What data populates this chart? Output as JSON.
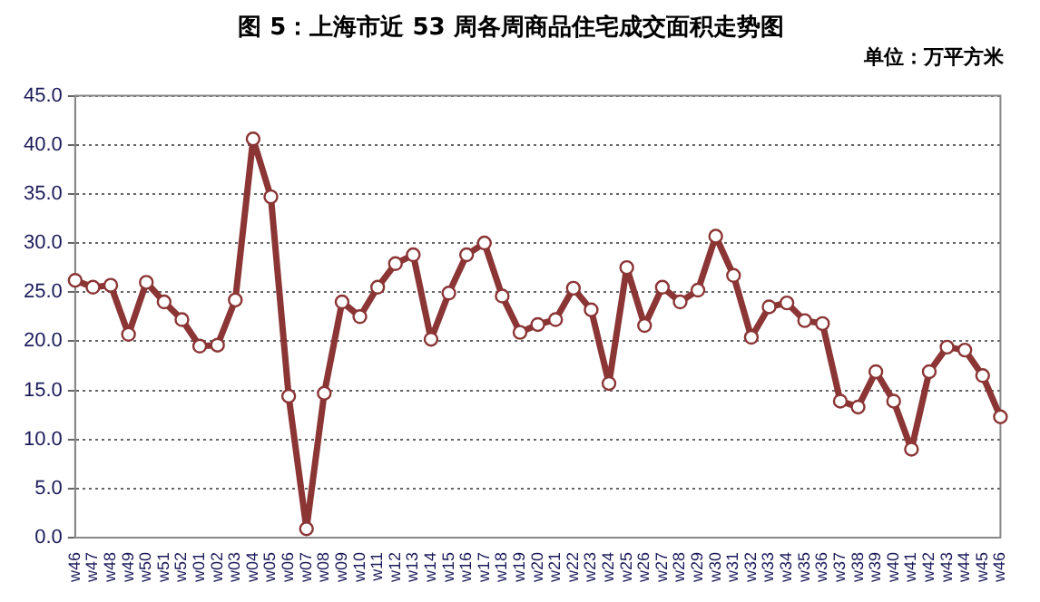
{
  "chart_data": {
    "type": "line",
    "title": "图 5：上海市近 53 周各周商品住宅成交面积走势图",
    "subtitle": "单位：万平方米",
    "categories": [
      "w46",
      "w47",
      "w48",
      "w49",
      "w50",
      "w51",
      "w52",
      "w01",
      "w02",
      "w03",
      "w04",
      "w05",
      "w06",
      "w07",
      "w08",
      "w09",
      "w10",
      "w11",
      "w12",
      "w13",
      "w14",
      "w15",
      "w16",
      "w17",
      "w18",
      "w19",
      "w20",
      "w21",
      "w22",
      "w23",
      "w24",
      "w25",
      "w26",
      "w27",
      "w28",
      "w29",
      "w30",
      "w31",
      "w32",
      "w33",
      "w34",
      "w35",
      "w36",
      "w37",
      "w38",
      "w39",
      "w40",
      "w41",
      "w42",
      "w43",
      "w44",
      "w45",
      "w46"
    ],
    "series": [
      {
        "color": "#8b3535",
        "values": [
          26.2,
          25.5,
          25.7,
          20.7,
          26.0,
          24.0,
          22.2,
          19.5,
          19.6,
          24.2,
          40.6,
          34.7,
          14.4,
          0.9,
          14.7,
          24.0,
          22.5,
          25.5,
          27.9,
          28.8,
          20.2,
          24.9,
          28.8,
          30.0,
          24.6,
          20.9,
          21.7,
          22.2,
          25.4,
          23.2,
          15.7,
          27.5,
          21.6,
          25.5,
          24.0,
          25.2,
          30.7,
          26.7,
          20.4,
          23.5,
          23.9,
          22.1,
          21.8,
          13.9,
          13.3,
          16.9,
          13.9,
          9.0,
          16.9,
          19.4,
          19.1,
          16.5,
          12.3
        ]
      }
    ],
    "ylim": [
      0,
      45
    ],
    "yticks": [
      {
        "value": 0,
        "label": "0.0"
      },
      {
        "value": 5,
        "label": "5.0"
      },
      {
        "value": 10,
        "label": "10.0"
      },
      {
        "value": 15,
        "label": "15.0"
      },
      {
        "value": 20,
        "label": "20.0"
      },
      {
        "value": 25,
        "label": "25.0"
      },
      {
        "value": 30,
        "label": "30.0"
      },
      {
        "value": 35,
        "label": "35.0"
      },
      {
        "value": 40,
        "label": "40.0"
      },
      {
        "value": 45,
        "label": "45.0"
      }
    ],
    "grid": "y",
    "marker": "circle",
    "line_style": "solid",
    "legend": false
  }
}
